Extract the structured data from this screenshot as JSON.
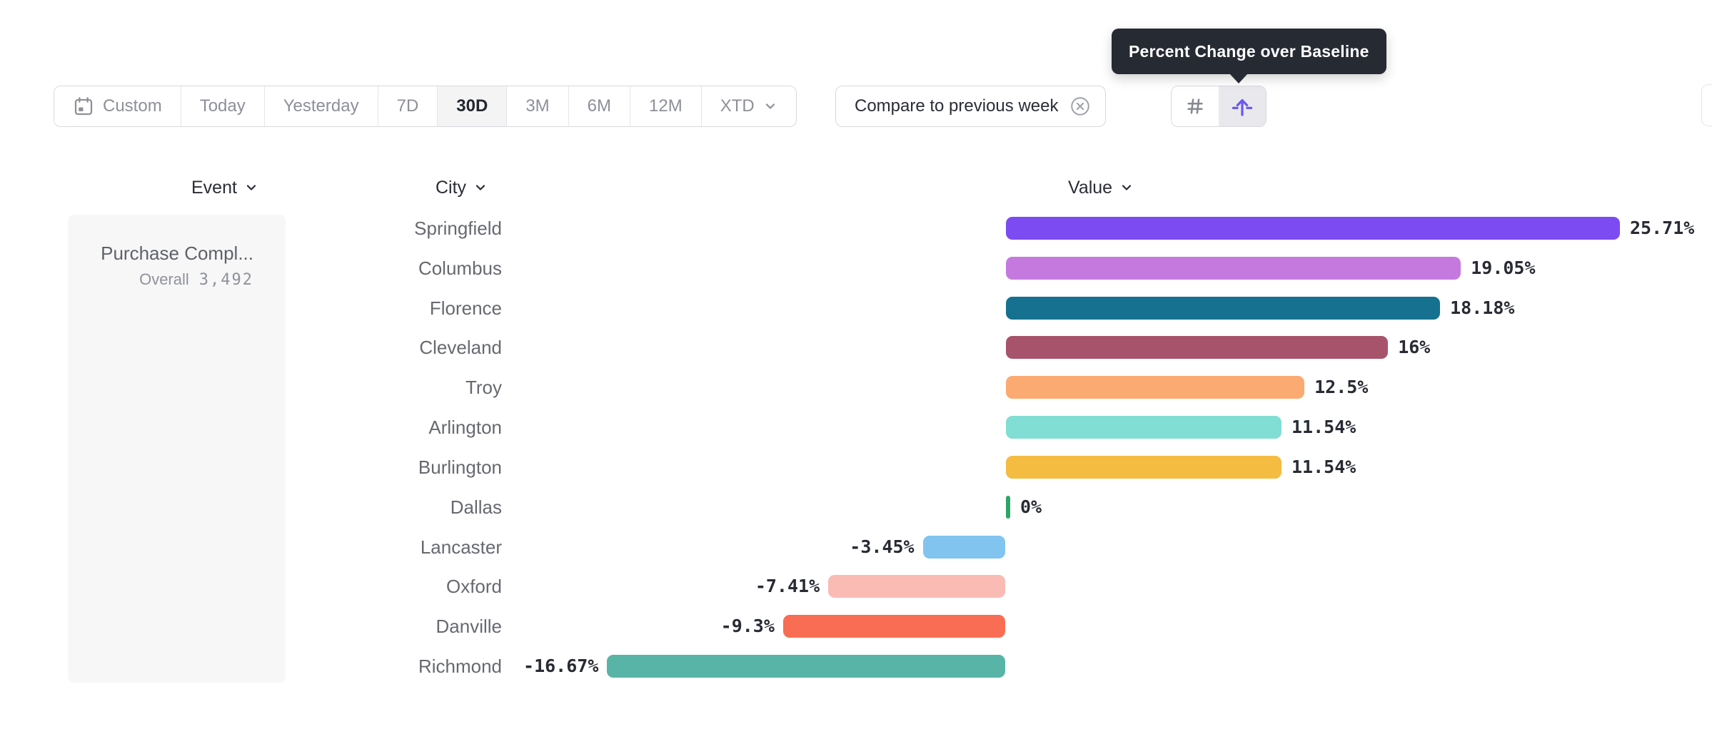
{
  "tooltip": {
    "text": "Percent Change over Baseline"
  },
  "toolbar": {
    "date_ranges": [
      {
        "label": "Custom",
        "icon": "calendar",
        "selected": false
      },
      {
        "label": "Today",
        "selected": false
      },
      {
        "label": "Yesterday",
        "selected": false
      },
      {
        "label": "7D",
        "selected": false
      },
      {
        "label": "30D",
        "selected": true
      },
      {
        "label": "3M",
        "selected": false
      },
      {
        "label": "6M",
        "selected": false
      },
      {
        "label": "12M",
        "selected": false
      },
      {
        "label": "XTD",
        "icon": "chevron-down",
        "selected": false
      }
    ],
    "compare": {
      "label": "Compare to previous week"
    },
    "view_toggles": [
      {
        "name": "number-format",
        "icon": "hash",
        "selected": false
      },
      {
        "name": "uplift-baseline",
        "icon": "arrow-up-baseline",
        "selected": true
      }
    ]
  },
  "table": {
    "headers": [
      {
        "label": "Event"
      },
      {
        "label": "City"
      },
      {
        "label": "Value"
      }
    ]
  },
  "event_card": {
    "title": "Purchase Compl...",
    "overall_label": "Overall",
    "overall_value": "3,492"
  },
  "chart_data": {
    "type": "bar",
    "orientation": "horizontal",
    "title": "Percent Change over Baseline",
    "unit": "%",
    "group_by": "City",
    "categories": [
      "Springfield",
      "Columbus",
      "Florence",
      "Cleveland",
      "Troy",
      "Arlington",
      "Burlington",
      "Dallas",
      "Lancaster",
      "Oxford",
      "Danville",
      "Richmond"
    ],
    "values": [
      25.71,
      19.05,
      18.18,
      16,
      12.5,
      11.54,
      11.54,
      0,
      -3.45,
      -7.41,
      -9.3,
      -16.67
    ],
    "value_labels": [
      "25.71%",
      "19.05%",
      "18.18%",
      "16%",
      "12.5%",
      "11.54%",
      "11.54%",
      "0%",
      "-3.45%",
      "-7.41%",
      "-9.3%",
      "-16.67%"
    ],
    "colors": [
      "#7C4BF2",
      "#C579DF",
      "#15718F",
      "#A8536C",
      "#FBAB71",
      "#81DED4",
      "#F5BC42",
      "#2BA566",
      "#81C4F0",
      "#FABBB4",
      "#F96D54",
      "#58B4A6"
    ],
    "baseline": 0,
    "xlim": [
      -16.67,
      25.71
    ],
    "grid": false,
    "legend": false
  }
}
